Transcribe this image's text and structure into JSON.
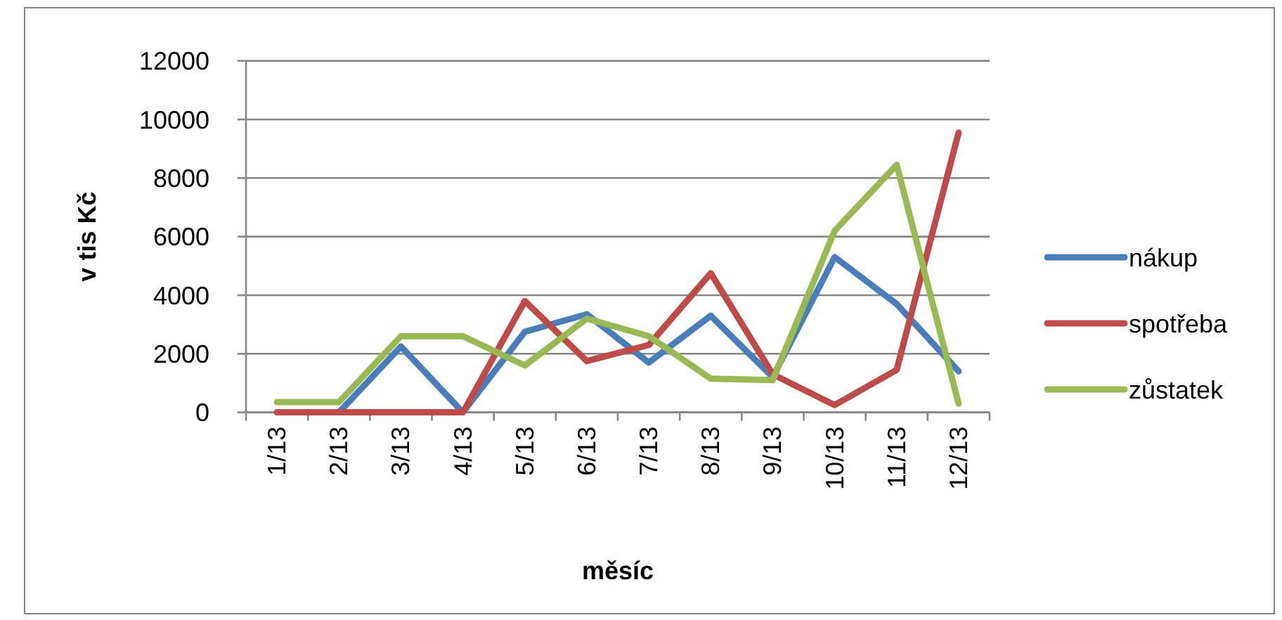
{
  "chart_data": {
    "type": "line",
    "xlabel": "měsíc",
    "ylabel": "v tis Kč",
    "categories": [
      "1/13",
      "2/13",
      "3/13",
      "4/13",
      "5/13",
      "6/13",
      "7/13",
      "8/13",
      "9/13",
      "10/13",
      "11/13",
      "12/13"
    ],
    "series": [
      {
        "name": "nákup",
        "color": "#4a7ebb",
        "values": [
          0,
          0,
          2250,
          0,
          2750,
          3350,
          1700,
          3300,
          1200,
          5300,
          3700,
          1400
        ]
      },
      {
        "name": "spotřeba",
        "color": "#be4b48",
        "values": [
          0,
          0,
          0,
          0,
          3800,
          1750,
          2300,
          4750,
          1300,
          250,
          1450,
          9550
        ]
      },
      {
        "name": "zůstatek",
        "color": "#98b954",
        "values": [
          350,
          350,
          2600,
          2600,
          1600,
          3200,
          2600,
          1150,
          1100,
          6200,
          8450,
          300
        ]
      }
    ],
    "ylim": [
      0,
      12000
    ],
    "yticks": [
      0,
      2000,
      4000,
      6000,
      8000,
      10000,
      12000
    ],
    "grid": "y",
    "legend": "right",
    "marker": "none",
    "line_style": "solid"
  }
}
